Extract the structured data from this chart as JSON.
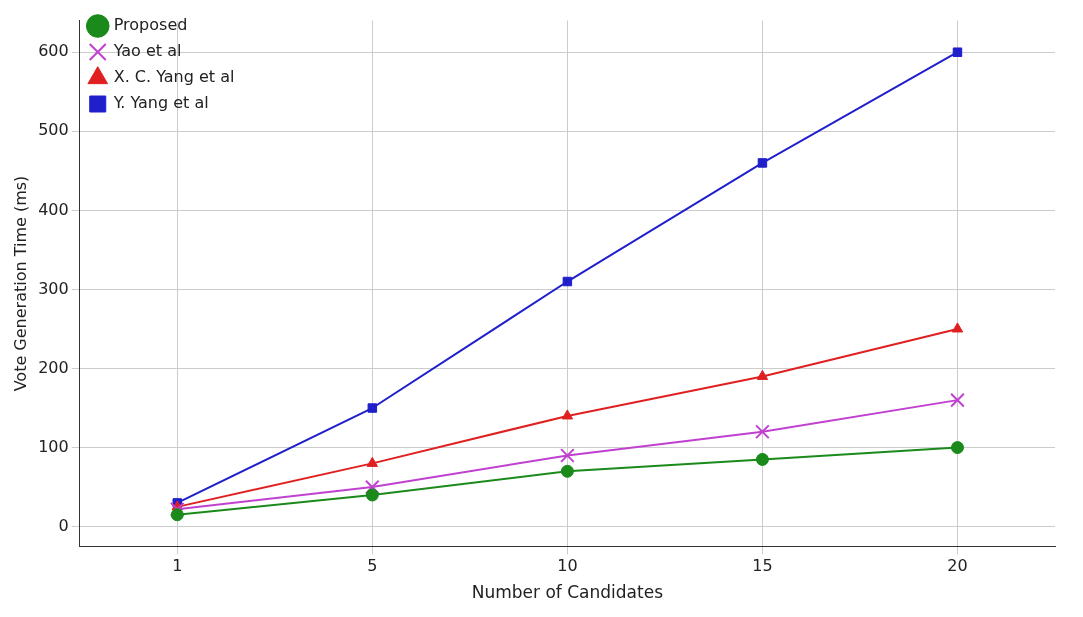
{
  "chart_data": {
    "type": "line",
    "xlabel": "Number of Candidates",
    "ylabel": "Vote Generation Time (ms)",
    "categories": [
      "1",
      "5",
      "10",
      "15",
      "20"
    ],
    "ylim": [
      -25,
      640
    ],
    "yticks": [
      0,
      100,
      200,
      300,
      400,
      500,
      600
    ],
    "grid": true,
    "legend": "top left",
    "line_style": "solid",
    "series": [
      {
        "name": "Proposed",
        "color": "#1a8a1a",
        "marker": "circle",
        "values": [
          15,
          40,
          70,
          85,
          100
        ]
      },
      {
        "name": "Yao et al",
        "color": "#c040d0",
        "marker": "cross",
        "values": [
          22,
          50,
          90,
          120,
          160
        ]
      },
      {
        "name": "X. C. Yang et al",
        "color": "#e02020",
        "marker": "triangle",
        "values": [
          25,
          80,
          140,
          190,
          250
        ]
      },
      {
        "name": "Y. Yang et al",
        "color": "#1f1fcc",
        "marker": "square",
        "values": [
          30,
          150,
          310,
          460,
          600
        ]
      }
    ]
  }
}
